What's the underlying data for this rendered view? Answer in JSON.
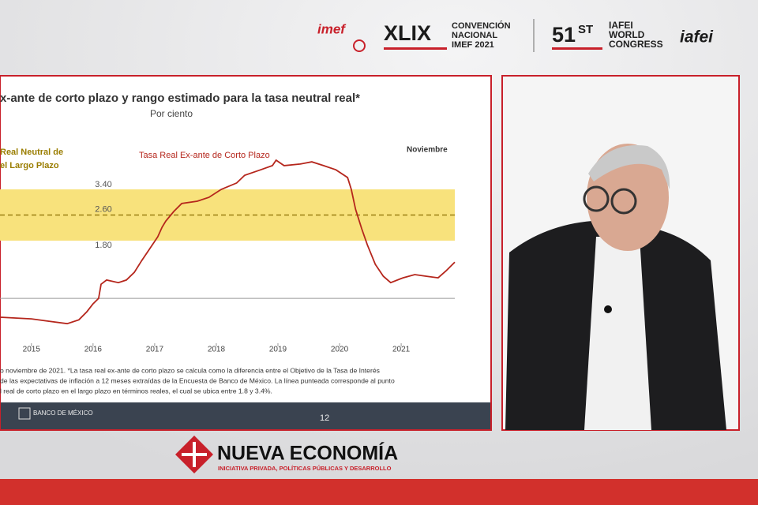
{
  "header": {
    "imef_logo": "imef",
    "edition": "XLIX",
    "convention": [
      "CONVENCIÓN",
      "NACIONAL",
      "IMEF 2021"
    ],
    "congress_number": "51",
    "congress_suffix": "ST",
    "congress": [
      "IAFEI",
      "WORLD",
      "CONGRESS"
    ],
    "iafei_logo": "iafei"
  },
  "slide": {
    "chart": {
      "type": "line",
      "title": "x-ante de corto plazo y rango estimado para la tasa neutral real*",
      "subtitle": "Por ciento",
      "x": [
        2014.49,
        2015.0,
        2015.26,
        2015.58,
        2015.77,
        2015.9,
        2016.0,
        2016.09,
        2016.13,
        2016.22,
        2016.41,
        2016.54,
        2016.67,
        2016.79,
        2016.92,
        2017.05,
        2017.12,
        2017.18,
        2017.31,
        2017.44,
        2017.69,
        2017.88,
        2018.08,
        2018.33,
        2018.46,
        2018.72,
        2018.91,
        2018.97,
        2019.1,
        2019.36,
        2019.55,
        2019.74,
        2019.94,
        2020.13,
        2020.19,
        2020.26,
        2020.36,
        2020.45,
        2020.58,
        2020.71,
        2020.83,
        2021.03,
        2021.22,
        2021.41,
        2021.6,
        2021.73,
        2021.87
      ],
      "values": [
        -0.59,
        -0.64,
        -0.71,
        -0.79,
        -0.67,
        -0.42,
        -0.17,
        0,
        0.44,
        0.57,
        0.49,
        0.57,
        0.81,
        1.18,
        1.55,
        1.92,
        2.22,
        2.41,
        2.71,
        2.96,
        3.03,
        3.15,
        3.4,
        3.6,
        3.84,
        4.01,
        4.14,
        4.31,
        4.14,
        4.19,
        4.26,
        4.14,
        4.01,
        3.77,
        3.4,
        2.78,
        2.17,
        1.67,
        1.06,
        0.69,
        0.49,
        0.64,
        0.74,
        0.69,
        0.64,
        0.86,
        1.13
      ],
      "color": "#b5261c",
      "xlim": [
        2014.49,
        2021.87
      ],
      "ylim": [
        -1.5,
        5
      ],
      "xticks": [
        2015,
        2016,
        2017,
        2018,
        2019,
        2020,
        2021
      ],
      "band": {
        "upper": {
          "value": 3.4,
          "label": "3.40"
        },
        "center": {
          "value": 2.6,
          "label": "2.60"
        },
        "lower": {
          "value": 1.8,
          "label": "1.80"
        },
        "color": "#f8e27c"
      },
      "band_label": [
        "Real Neutral de",
        "el Largo Plazo"
      ],
      "series_label": "Tasa Real Ex-ante de Corto Plazo",
      "end_label": "Noviembre"
    },
    "footnote": [
      "o noviembre de 2021. *La tasa real ex-ante de corto plazo se calcula como la diferencia entre el Objetivo de la Tasa de Interés",
      "de las expectativas de inflación a 12 meses extraídas de la Encuesta de Banco de México. La línea punteada corresponde al punto",
      "l real de corto plazo en el largo plazo en términos reales, el cual se ubica entre 1.8 y 3.4%."
    ],
    "bank": "BANCO DE MÉXICO",
    "page_number": "12"
  },
  "footer": {
    "brand": "NUEVA ECONOMÍA",
    "tagline": "INICIATIVA PRIVADA, POLÍTICAS PÚBLICAS Y DESARROLLO"
  }
}
